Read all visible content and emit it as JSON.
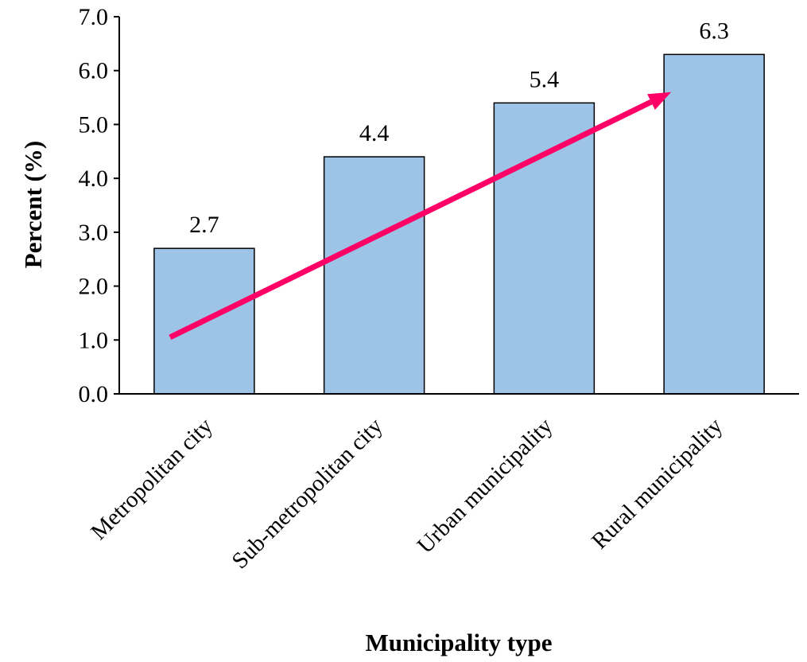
{
  "chart_data": {
    "type": "bar",
    "categories": [
      "Metropolitan city",
      "Sub-metropolitan city",
      "Urban municipality",
      "Rural municipality"
    ],
    "values": [
      2.7,
      4.4,
      5.4,
      6.3
    ],
    "data_labels": [
      "2.7",
      "4.4",
      "5.4",
      "6.3"
    ],
    "xlabel": "Municipality type",
    "ylabel": "Percent (%)",
    "ylim": [
      0,
      7
    ],
    "yticks": [
      0,
      1,
      2,
      3,
      4,
      5,
      6,
      7
    ],
    "ytick_labels": [
      "0.0",
      "1.0",
      "2.0",
      "3.0",
      "4.0",
      "5.0",
      "6.0",
      "7.0"
    ],
    "grid": false,
    "legend": "none",
    "bar_color": "#9dc3e6",
    "bar_edge_color": "#000000",
    "trend_arrow": {
      "color": "#ff0066",
      "from": {
        "category": "Metropolitan city",
        "value": 1.05
      },
      "to": {
        "category": "Rural municipality",
        "value": 5.6
      }
    }
  }
}
